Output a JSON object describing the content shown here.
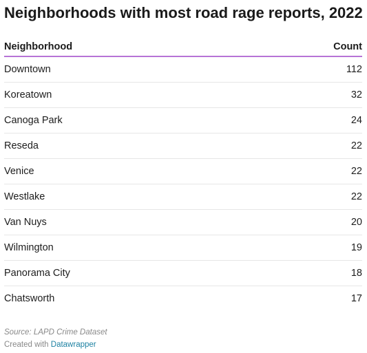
{
  "title": "Neighborhoods with most road rage reports, 2022",
  "chart_data": {
    "type": "table",
    "title": "Neighborhoods with most road rage reports, 2022",
    "columns": [
      "Neighborhood",
      "Count"
    ],
    "rows": [
      [
        "Downtown",
        112
      ],
      [
        "Koreatown",
        32
      ],
      [
        "Canoga Park",
        24
      ],
      [
        "Reseda",
        22
      ],
      [
        "Venice",
        22
      ],
      [
        "Westlake",
        22
      ],
      [
        "Van Nuys",
        20
      ],
      [
        "Wilmington",
        19
      ],
      [
        "Panorama City",
        18
      ],
      [
        "Chatsworth",
        17
      ]
    ]
  },
  "footer": {
    "source": "Source: LAPD Crime Dataset",
    "credit_prefix": "Created with ",
    "credit_link": "Datawrapper"
  },
  "colors": {
    "header_rule": "#b773d6",
    "row_rule": "#e6e6e6",
    "footer_text": "#888888",
    "link": "#1d81a2"
  }
}
